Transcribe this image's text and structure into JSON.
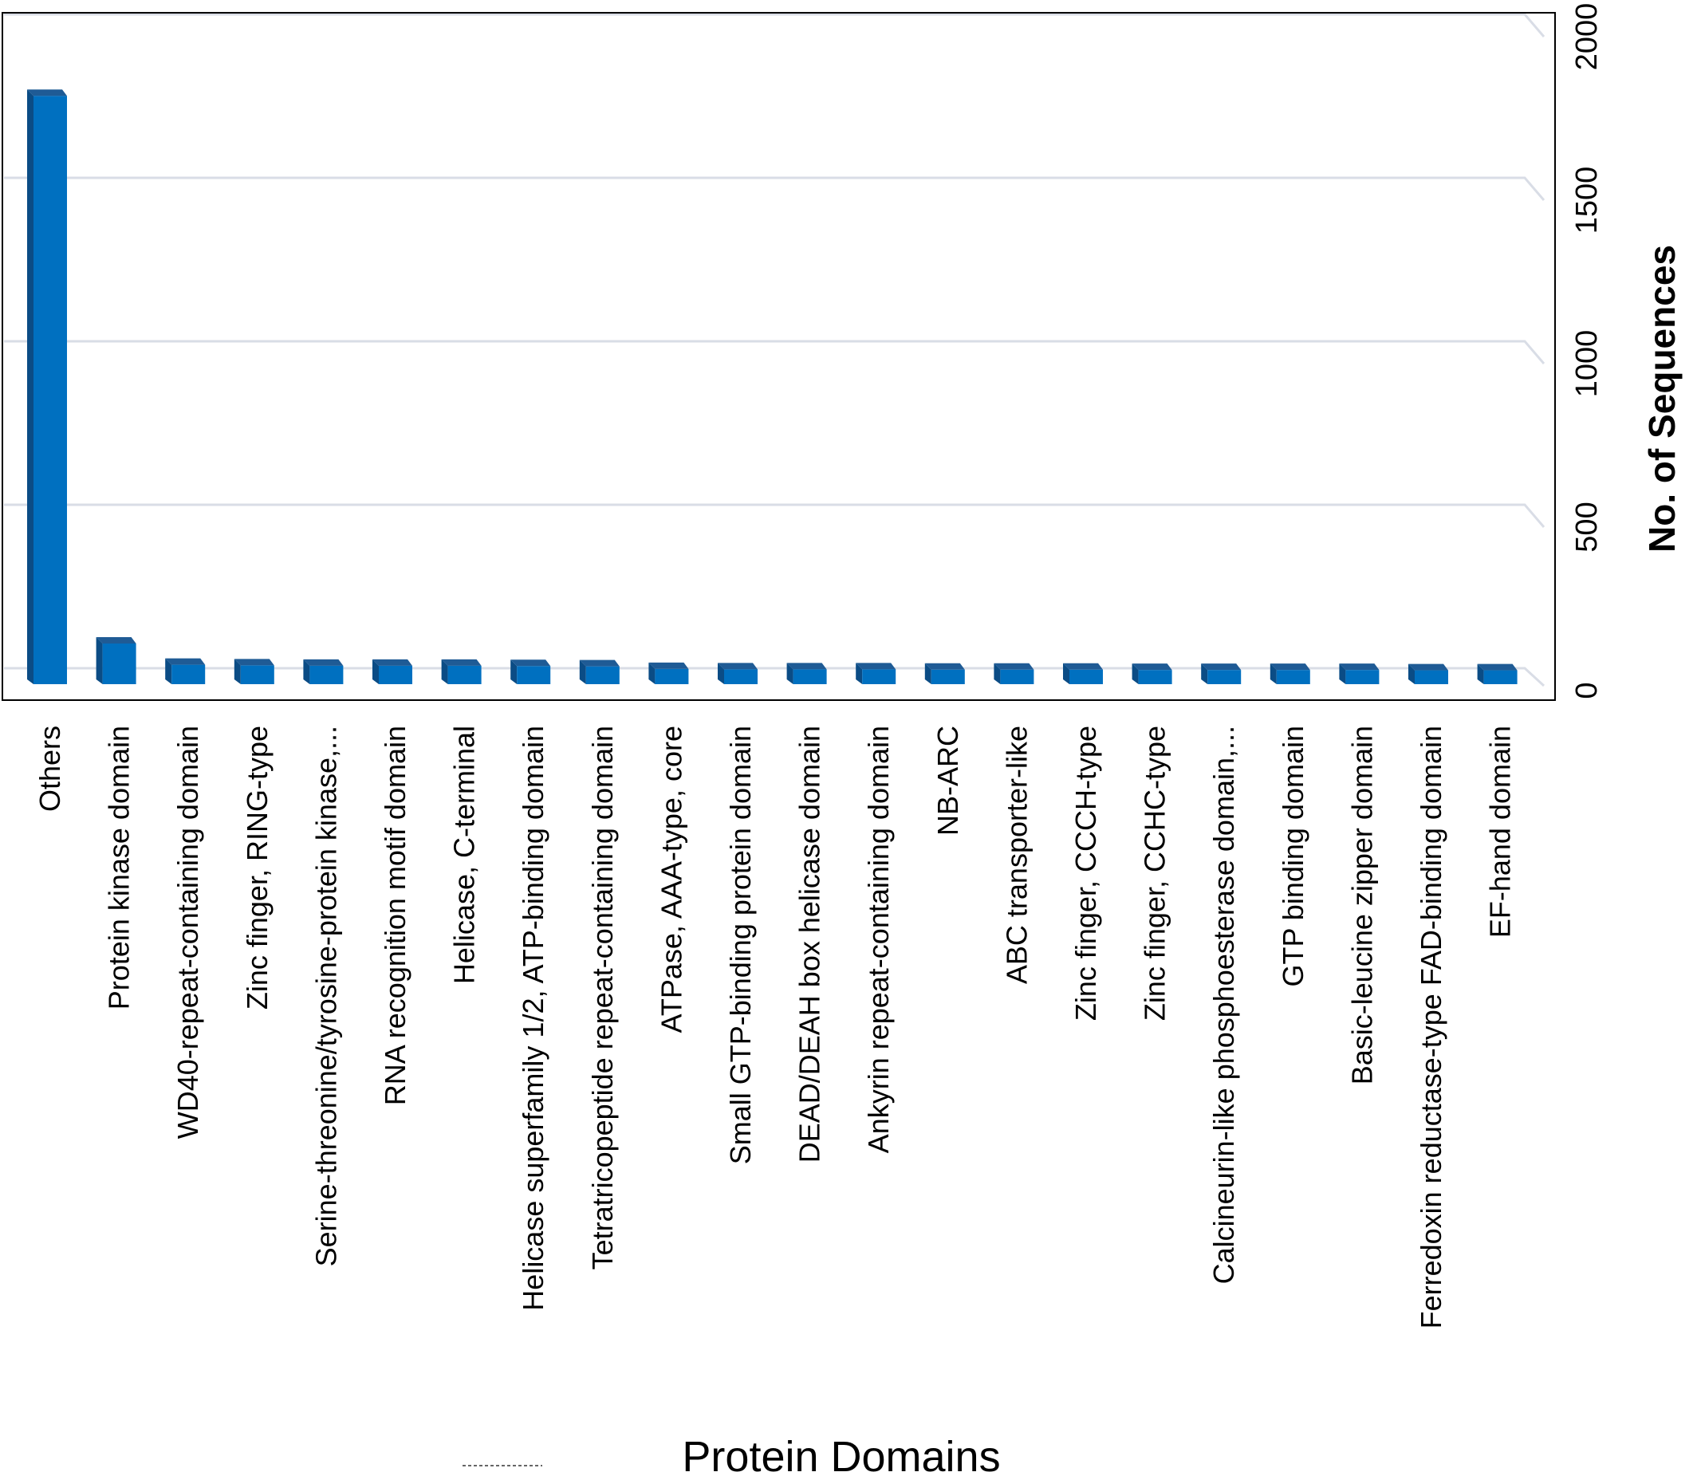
{
  "chart_data": {
    "type": "bar",
    "xlabel": "Protein Domains",
    "ylabel": "No. of Sequences",
    "ylim": [
      0,
      2000
    ],
    "yticks": [
      "0",
      "500",
      "1000",
      "1500",
      "2000"
    ],
    "grid": true,
    "categories": [
      "Others",
      "Protein kinase domain",
      "WD40-repeat-containing domain",
      "Zinc finger, RING-type",
      "Serine-threonine/tyrosine-protein kinase,...",
      "RNA recognition motif domain",
      "Helicase, C-terminal",
      "Helicase superfamily 1/2, ATP-binding domain",
      "Tetratricopeptide repeat-containing domain",
      "ATPase, AAA-type, core",
      "Small GTP-binding protein domain",
      "DEAD/DEAH box helicase domain",
      "Ankyrin repeat-containing domain",
      "NB-ARC",
      "ABC transporter-like",
      "Zinc finger, CCCH-type",
      "Zinc finger, CCHC-type",
      "Calcineurin-like phosphoesterase domain,...",
      "GTP binding domain",
      "Basic-leucine zipper domain",
      "Ferredoxin reductase-type FAD-binding domain",
      "EF-hand domain"
    ],
    "values": [
      1780,
      105,
      40,
      38,
      37,
      37,
      37,
      36,
      35,
      27,
      26,
      26,
      26,
      25,
      25,
      25,
      24,
      24,
      24,
      24,
      23,
      23
    ],
    "colors": {
      "bar_front": "#0070C0",
      "bar_top": "#1F5B95",
      "bar_side": "#0B4C85",
      "grid": "#D9DDE6"
    }
  }
}
